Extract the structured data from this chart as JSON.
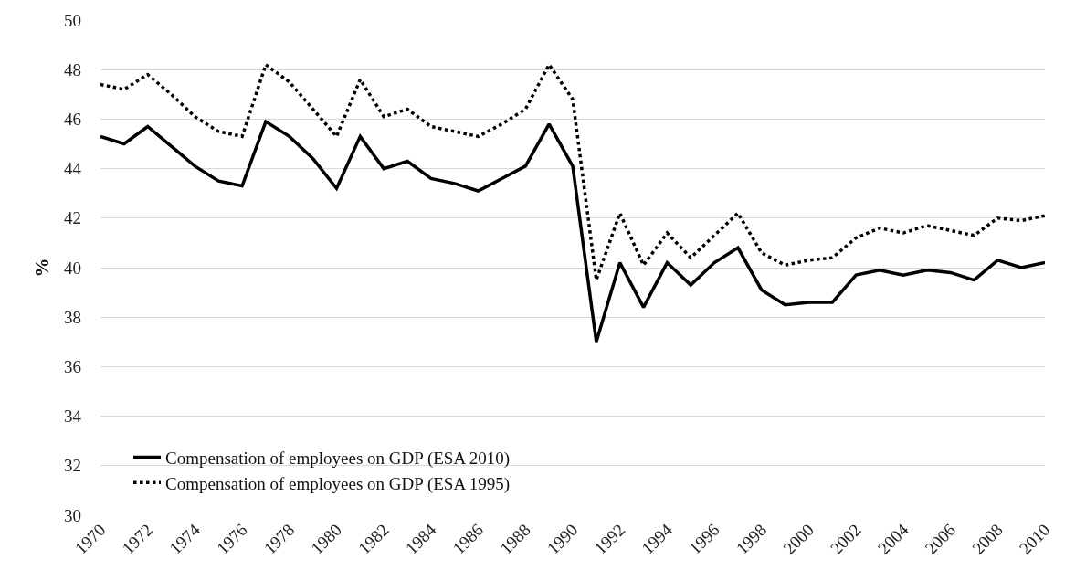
{
  "chart_data": {
    "type": "line",
    "ylabel": "%",
    "x": [
      1970,
      1971,
      1972,
      1973,
      1974,
      1975,
      1976,
      1977,
      1978,
      1979,
      1980,
      1981,
      1982,
      1983,
      1984,
      1985,
      1986,
      1987,
      1988,
      1989,
      1990,
      1991,
      1992,
      1993,
      1994,
      1995,
      1996,
      1997,
      1998,
      1999,
      2000,
      2001,
      2002,
      2003,
      2004,
      2005,
      2006,
      2007,
      2008,
      2009,
      2010
    ],
    "series": [
      {
        "name": "Compensation of employees on GDP (ESA 2010)",
        "color": "#000000",
        "line_style": "solid",
        "values": [
          45.3,
          45.0,
          45.7,
          44.9,
          44.1,
          43.5,
          43.3,
          45.9,
          45.3,
          44.4,
          43.2,
          45.3,
          44.0,
          44.3,
          43.6,
          43.4,
          43.1,
          43.6,
          44.1,
          45.8,
          44.1,
          37.0,
          40.2,
          38.4,
          40.2,
          39.3,
          40.2,
          40.8,
          39.1,
          38.5,
          38.6,
          38.6,
          39.7,
          39.9,
          39.7,
          39.9,
          39.8,
          39.5,
          40.3,
          40.0,
          40.2
        ]
      },
      {
        "name": "Compensation of employees on GDP (ESA 1995)",
        "color": "#000000",
        "line_style": "dotted",
        "values": [
          47.4,
          47.2,
          47.8,
          47.0,
          46.1,
          45.5,
          45.3,
          48.2,
          47.5,
          46.4,
          45.3,
          47.6,
          46.1,
          46.4,
          45.7,
          45.5,
          45.3,
          45.8,
          46.4,
          48.2,
          46.8,
          39.5,
          42.2,
          40.1,
          41.4,
          40.4,
          41.3,
          42.2,
          40.6,
          40.1,
          40.3,
          40.4,
          41.2,
          41.6,
          41.4,
          41.7,
          41.5,
          41.3,
          42.0,
          41.9,
          42.1
        ]
      }
    ],
    "xlim": [
      1970,
      2010
    ],
    "xticks": [
      1970,
      1972,
      1974,
      1976,
      1978,
      1980,
      1982,
      1984,
      1986,
      1988,
      1990,
      1992,
      1994,
      1996,
      1998,
      2000,
      2002,
      2004,
      2006,
      2008,
      2010
    ],
    "ylim": [
      30,
      50
    ],
    "yticks": [
      30,
      32,
      34,
      36,
      38,
      40,
      42,
      44,
      46,
      48,
      50
    ],
    "grid": "y",
    "legend": "bottom left",
    "marker": "none"
  }
}
